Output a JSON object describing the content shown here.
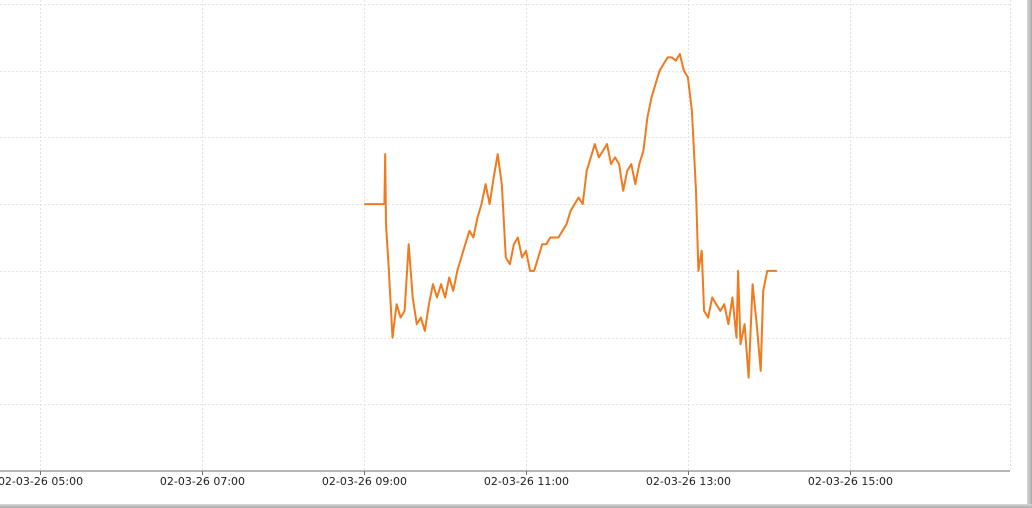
{
  "chart_data": {
    "type": "line",
    "title": "",
    "xlabel": "",
    "ylabel": "",
    "x_ticks": [
      "02-03-26 05:00",
      "02-03-26 07:00",
      "02-03-26 09:00",
      "02-03-26 11:00",
      "02-03-26 13:00",
      "02-03-26 15:00"
    ],
    "x_tick_hours": [
      5,
      7,
      9,
      11,
      13,
      15
    ],
    "xlim_hours": [
      4.5,
      16.98
    ],
    "ylim": [
      0,
      7
    ],
    "y_gridlines": [
      1,
      2,
      3,
      4,
      5,
      6,
      7
    ],
    "y_tick_labels_visible": false,
    "grid": true,
    "series": [
      {
        "color": "#f07a1e",
        "points": [
          [
            9.0,
            4.0
          ],
          [
            9.25,
            4.0
          ],
          [
            9.26,
            4.75
          ],
          [
            9.27,
            3.7
          ],
          [
            9.3,
            3.1
          ],
          [
            9.35,
            2.0
          ],
          [
            9.4,
            2.5
          ],
          [
            9.45,
            2.3
          ],
          [
            9.5,
            2.4
          ],
          [
            9.55,
            3.4
          ],
          [
            9.6,
            2.6
          ],
          [
            9.65,
            2.2
          ],
          [
            9.7,
            2.3
          ],
          [
            9.75,
            2.1
          ],
          [
            9.8,
            2.5
          ],
          [
            9.85,
            2.8
          ],
          [
            9.9,
            2.6
          ],
          [
            9.95,
            2.8
          ],
          [
            10.0,
            2.6
          ],
          [
            10.05,
            2.9
          ],
          [
            10.1,
            2.7
          ],
          [
            10.15,
            3.0
          ],
          [
            10.2,
            3.2
          ],
          [
            10.25,
            3.4
          ],
          [
            10.3,
            3.6
          ],
          [
            10.35,
            3.5
          ],
          [
            10.4,
            3.8
          ],
          [
            10.45,
            4.0
          ],
          [
            10.5,
            4.3
          ],
          [
            10.55,
            4.0
          ],
          [
            10.6,
            4.4
          ],
          [
            10.65,
            4.75
          ],
          [
            10.7,
            4.3
          ],
          [
            10.75,
            3.2
          ],
          [
            10.8,
            3.1
          ],
          [
            10.85,
            3.4
          ],
          [
            10.9,
            3.5
          ],
          [
            10.95,
            3.2
          ],
          [
            11.0,
            3.3
          ],
          [
            11.05,
            3.0
          ],
          [
            11.1,
            3.0
          ],
          [
            11.15,
            3.2
          ],
          [
            11.2,
            3.4
          ],
          [
            11.25,
            3.4
          ],
          [
            11.3,
            3.5
          ],
          [
            11.35,
            3.5
          ],
          [
            11.4,
            3.5
          ],
          [
            11.45,
            3.6
          ],
          [
            11.5,
            3.7
          ],
          [
            11.55,
            3.9
          ],
          [
            11.6,
            4.0
          ],
          [
            11.65,
            4.1
          ],
          [
            11.7,
            4.0
          ],
          [
            11.75,
            4.5
          ],
          [
            11.8,
            4.7
          ],
          [
            11.85,
            4.9
          ],
          [
            11.9,
            4.7
          ],
          [
            11.95,
            4.8
          ],
          [
            12.0,
            4.9
          ],
          [
            12.05,
            4.6
          ],
          [
            12.1,
            4.7
          ],
          [
            12.15,
            4.6
          ],
          [
            12.2,
            4.2
          ],
          [
            12.25,
            4.5
          ],
          [
            12.3,
            4.6
          ],
          [
            12.35,
            4.3
          ],
          [
            12.4,
            4.6
          ],
          [
            12.45,
            4.8
          ],
          [
            12.5,
            5.3
          ],
          [
            12.55,
            5.6
          ],
          [
            12.6,
            5.8
          ],
          [
            12.65,
            6.0
          ],
          [
            12.7,
            6.1
          ],
          [
            12.75,
            6.2
          ],
          [
            12.8,
            6.2
          ],
          [
            12.85,
            6.15
          ],
          [
            12.9,
            6.25
          ],
          [
            12.95,
            6.0
          ],
          [
            13.0,
            5.9
          ],
          [
            13.05,
            5.4
          ],
          [
            13.1,
            4.2
          ],
          [
            13.13,
            3.0
          ],
          [
            13.17,
            3.3
          ],
          [
            13.2,
            2.4
          ],
          [
            13.25,
            2.3
          ],
          [
            13.3,
            2.6
          ],
          [
            13.35,
            2.5
          ],
          [
            13.4,
            2.4
          ],
          [
            13.45,
            2.5
          ],
          [
            13.5,
            2.2
          ],
          [
            13.55,
            2.6
          ],
          [
            13.6,
            2.0
          ],
          [
            13.62,
            3.0
          ],
          [
            13.65,
            1.9
          ],
          [
            13.7,
            2.2
          ],
          [
            13.75,
            1.4
          ],
          [
            13.8,
            2.8
          ],
          [
            13.85,
            2.2
          ],
          [
            13.9,
            1.5
          ],
          [
            13.93,
            2.7
          ],
          [
            13.98,
            3.0
          ],
          [
            14.1,
            3.0
          ]
        ]
      }
    ]
  }
}
